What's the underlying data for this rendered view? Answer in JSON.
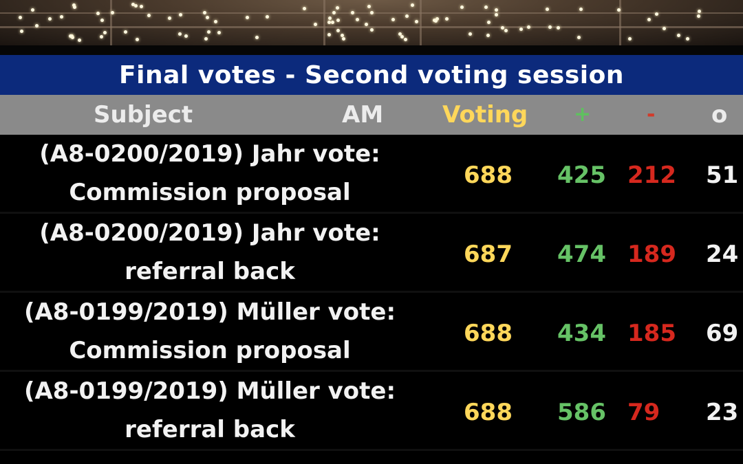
{
  "title": "Final votes - Second voting session",
  "headers": {
    "subject": "Subject",
    "am": "AM",
    "voting": "Voting",
    "plus": "+",
    "minus": "-",
    "abstain": "o"
  },
  "rows": [
    {
      "line1": "(A8-0200/2019) Jahr vote:",
      "line2": "Commission proposal",
      "voting": "688",
      "plus": "425",
      "minus": "212",
      "abstain": "51"
    },
    {
      "line1": "(A8-0200/2019) Jahr vote:",
      "line2": "referral back",
      "voting": "687",
      "plus": "474",
      "minus": "189",
      "abstain": "24"
    },
    {
      "line1": "(A8-0199/2019) Müller vote:",
      "line2": "Commission proposal",
      "voting": "688",
      "plus": "434",
      "minus": "185",
      "abstain": "69"
    },
    {
      "line1": "(A8-0199/2019) Müller vote:",
      "line2": "referral back",
      "voting": "688",
      "plus": "586",
      "minus": "79",
      "abstain": "23"
    }
  ],
  "colors": {
    "title_bar": "#0c2a7c",
    "header_bar": "#8a8a8a",
    "voting": "#ffd75a",
    "plus": "#66c266",
    "minus": "#d6281e",
    "text": "#f2f2f2"
  }
}
